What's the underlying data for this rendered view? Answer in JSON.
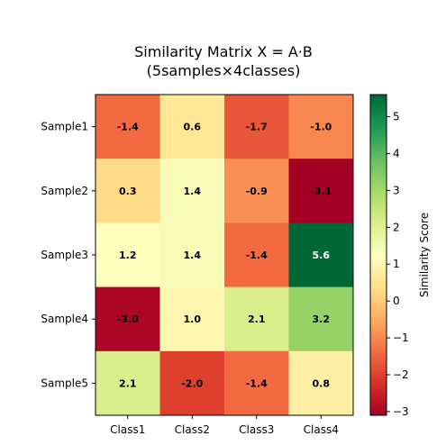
{
  "chart_data": {
    "type": "heatmap",
    "title": "Similarity Matrix X = A·B",
    "subtitle": "(5samples×4classes)",
    "rows": [
      "Sample1",
      "Sample2",
      "Sample3",
      "Sample4",
      "Sample5"
    ],
    "columns": [
      "Class1",
      "Class2",
      "Class3",
      "Class4"
    ],
    "values": [
      [
        -1.4,
        0.6,
        -1.7,
        -1.0
      ],
      [
        0.3,
        1.4,
        -0.9,
        -3.1
      ],
      [
        1.2,
        1.4,
        -1.4,
        5.6
      ],
      [
        -3.0,
        1.0,
        2.1,
        3.2
      ],
      [
        2.1,
        -2.0,
        -1.4,
        0.8
      ]
    ],
    "value_labels": [
      [
        "-1.4",
        "0.6",
        "-1.7",
        "-1.0"
      ],
      [
        "0.3",
        "1.4",
        "-0.9",
        "-3.1"
      ],
      [
        "1.2",
        "1.4",
        "-1.4",
        "5.6"
      ],
      [
        "-3.0",
        "1.0",
        "2.1",
        "3.2"
      ],
      [
        "2.1",
        "-2.0",
        "-1.4",
        "0.8"
      ]
    ],
    "colorscale": "RdYlGn",
    "vmin": -3.1,
    "vmax": 5.6,
    "colorbar": {
      "label": "Similarity Score",
      "ticks": [
        -3,
        -2,
        -1,
        0,
        1,
        2,
        3,
        4,
        5
      ],
      "tick_labels": [
        "−3",
        "−2",
        "−1",
        "0",
        "1",
        "2",
        "3",
        "4",
        "5"
      ]
    }
  }
}
